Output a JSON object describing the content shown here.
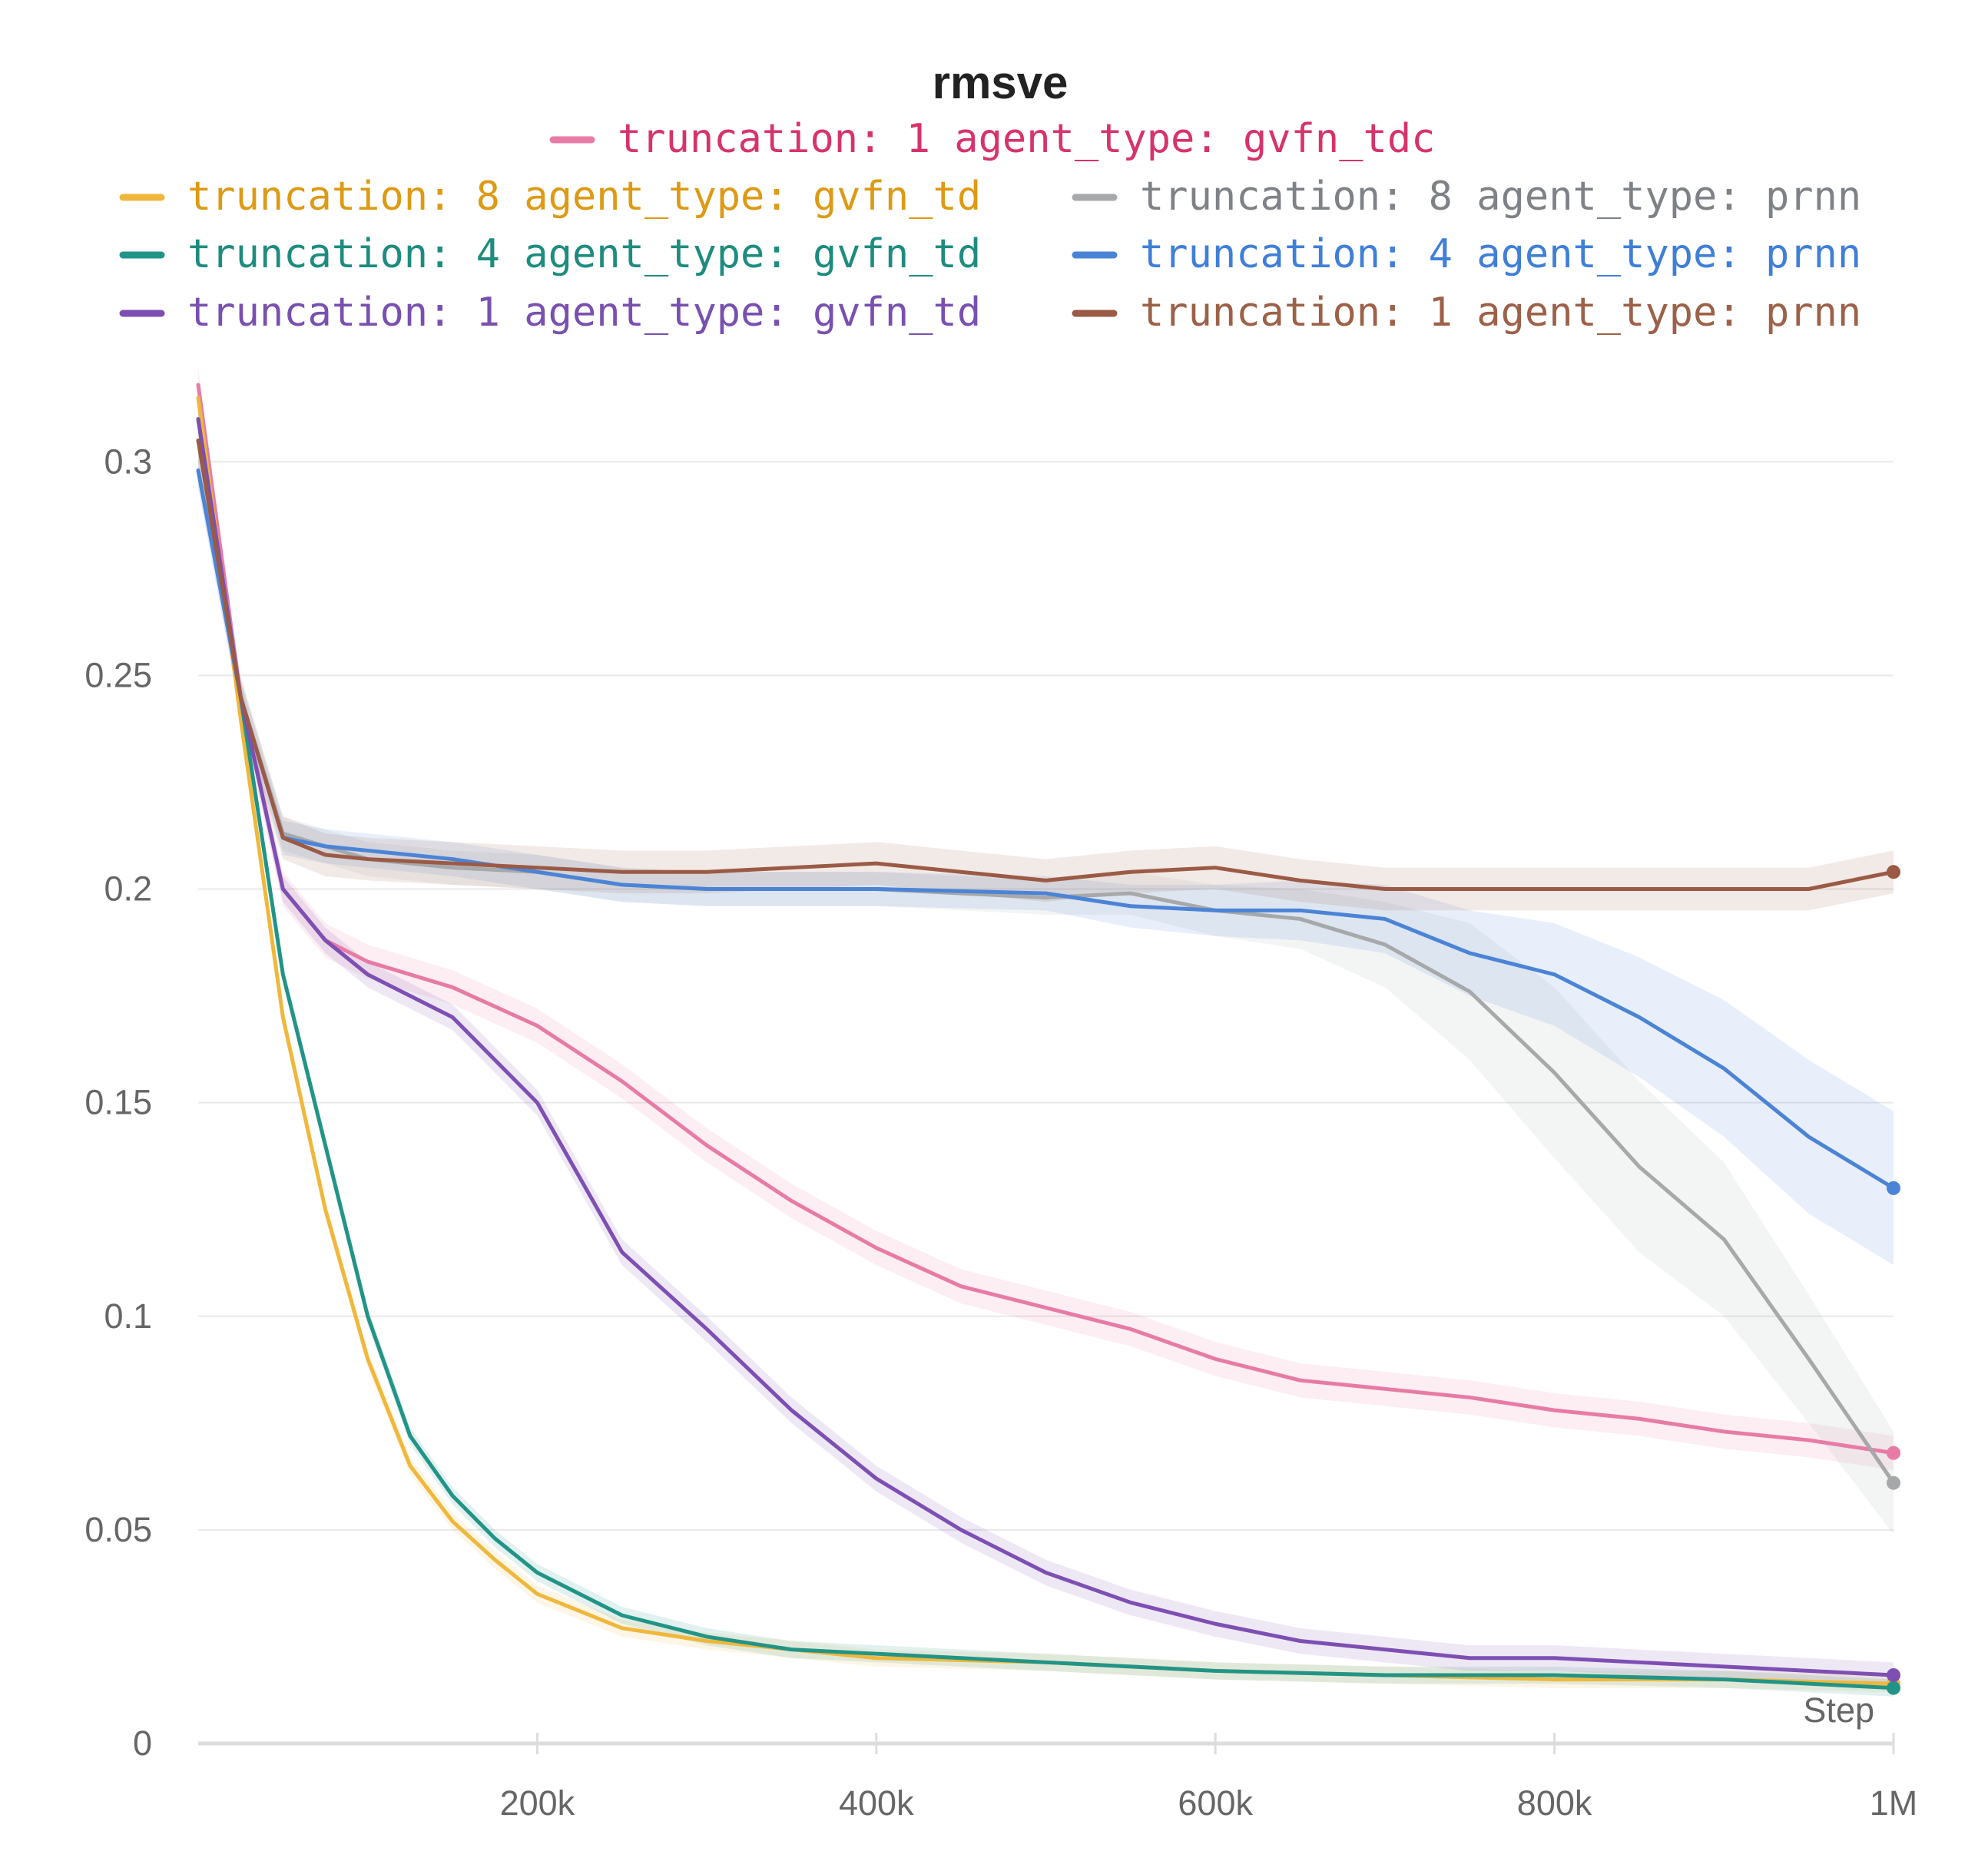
{
  "chart_data": {
    "type": "line",
    "title": "rmsve",
    "xlabel": "Step",
    "ylabel": "",
    "xlim": [
      0,
      1000000
    ],
    "ylim": [
      0,
      0.32
    ],
    "x_ticks": [
      {
        "value": 200000,
        "label": "200k"
      },
      {
        "value": 400000,
        "label": "400k"
      },
      {
        "value": 600000,
        "label": "600k"
      },
      {
        "value": 800000,
        "label": "800k"
      },
      {
        "value": 1000000,
        "label": "1M"
      }
    ],
    "y_ticks": [
      {
        "value": 0,
        "label": "0"
      },
      {
        "value": 0.05,
        "label": "0.05"
      },
      {
        "value": 0.1,
        "label": "0.1"
      },
      {
        "value": 0.15,
        "label": "0.15"
      },
      {
        "value": 0.2,
        "label": "0.2"
      },
      {
        "value": 0.25,
        "label": "0.25"
      },
      {
        "value": 0.3,
        "label": "0.3"
      }
    ],
    "grid": true,
    "legend_position": "top",
    "series": [
      {
        "name": "truncation: 1 agent_type: gvfn_tdc",
        "color": "#e87ba6",
        "label_color": "#d6336c",
        "x": [
          0,
          25000,
          50000,
          75000,
          100000,
          150000,
          200000,
          250000,
          300000,
          350000,
          400000,
          450000,
          500000,
          550000,
          600000,
          650000,
          700000,
          750000,
          800000,
          850000,
          900000,
          950000,
          1000000
        ],
        "y": [
          0.318,
          0.245,
          0.2,
          0.188,
          0.183,
          0.177,
          0.168,
          0.155,
          0.14,
          0.127,
          0.116,
          0.107,
          0.102,
          0.097,
          0.09,
          0.085,
          0.083,
          0.081,
          0.078,
          0.076,
          0.073,
          0.071,
          0.068
        ],
        "band": [
          0.004,
          0.004,
          0.004,
          0.004,
          0.004,
          0.004,
          0.004,
          0.004,
          0.004,
          0.004,
          0.004,
          0.004,
          0.004,
          0.004,
          0.004,
          0.004,
          0.004,
          0.004,
          0.004,
          0.004,
          0.004,
          0.004,
          0.004
        ]
      },
      {
        "name": "truncation: 8 agent_type: gvfn_td",
        "color": "#efb83c",
        "label_color": "#dd9a14",
        "x": [
          0,
          25000,
          50000,
          75000,
          100000,
          125000,
          150000,
          175000,
          200000,
          250000,
          300000,
          350000,
          400000,
          500000,
          600000,
          700000,
          800000,
          900000,
          1000000
        ],
        "y": [
          0.315,
          0.24,
          0.17,
          0.125,
          0.09,
          0.065,
          0.052,
          0.043,
          0.035,
          0.027,
          0.024,
          0.022,
          0.02,
          0.019,
          0.017,
          0.016,
          0.015,
          0.015,
          0.014
        ],
        "band": [
          0.002,
          0.002,
          0.002,
          0.002,
          0.002,
          0.002,
          0.002,
          0.002,
          0.002,
          0.002,
          0.002,
          0.002,
          0.002,
          0.002,
          0.002,
          0.002,
          0.002,
          0.002,
          0.002
        ]
      },
      {
        "name": "truncation: 4 agent_type: gvfn_td",
        "color": "#229487",
        "label_color": "#1d8c7f",
        "x": [
          0,
          25000,
          50000,
          75000,
          100000,
          125000,
          150000,
          175000,
          200000,
          250000,
          300000,
          350000,
          400000,
          500000,
          600000,
          700000,
          800000,
          900000,
          1000000
        ],
        "y": [
          0.31,
          0.245,
          0.18,
          0.14,
          0.1,
          0.072,
          0.058,
          0.048,
          0.04,
          0.03,
          0.025,
          0.022,
          0.021,
          0.019,
          0.017,
          0.016,
          0.016,
          0.015,
          0.013
        ],
        "band": [
          0.002,
          0.002,
          0.002,
          0.002,
          0.002,
          0.002,
          0.002,
          0.002,
          0.002,
          0.002,
          0.002,
          0.002,
          0.002,
          0.002,
          0.002,
          0.002,
          0.002,
          0.002,
          0.002
        ]
      },
      {
        "name": "truncation: 1 agent_type: gvfn_td",
        "color": "#7e4fb3",
        "label_color": "#7950b0",
        "x": [
          0,
          25000,
          50000,
          75000,
          100000,
          150000,
          175000,
          200000,
          250000,
          300000,
          350000,
          400000,
          450000,
          500000,
          550000,
          600000,
          650000,
          700000,
          750000,
          800000,
          850000,
          900000,
          1000000
        ],
        "y": [
          0.31,
          0.245,
          0.2,
          0.188,
          0.18,
          0.17,
          0.16,
          0.15,
          0.115,
          0.097,
          0.078,
          0.062,
          0.05,
          0.04,
          0.033,
          0.028,
          0.024,
          0.022,
          0.02,
          0.02,
          0.019,
          0.018,
          0.016
        ],
        "band": [
          0.003,
          0.003,
          0.003,
          0.003,
          0.003,
          0.003,
          0.003,
          0.003,
          0.003,
          0.003,
          0.003,
          0.003,
          0.003,
          0.003,
          0.003,
          0.003,
          0.003,
          0.003,
          0.003,
          0.003,
          0.003,
          0.003,
          0.003
        ]
      },
      {
        "name": "truncation: 8 agent_type: prnn",
        "color": "#a6a8aa",
        "label_color": "#7e8287",
        "x": [
          0,
          25000,
          50000,
          100000,
          150000,
          200000,
          250000,
          300000,
          400000,
          500000,
          550000,
          600000,
          650000,
          700000,
          750000,
          800000,
          850000,
          900000,
          950000,
          1000000
        ],
        "y": [
          0.298,
          0.245,
          0.213,
          0.207,
          0.205,
          0.204,
          0.201,
          0.2,
          0.2,
          0.198,
          0.199,
          0.195,
          0.193,
          0.187,
          0.176,
          0.157,
          0.135,
          0.118,
          0.09,
          0.061
        ],
        "band": [
          0.004,
          0.004,
          0.004,
          0.004,
          0.004,
          0.004,
          0.004,
          0.004,
          0.004,
          0.004,
          0.005,
          0.006,
          0.007,
          0.01,
          0.016,
          0.02,
          0.02,
          0.018,
          0.015,
          0.012
        ]
      },
      {
        "name": "truncation: 4 agent_type: prnn",
        "color": "#4b84d6",
        "label_color": "#3f7fd8",
        "x": [
          0,
          25000,
          50000,
          75000,
          100000,
          150000,
          200000,
          250000,
          300000,
          400000,
          500000,
          550000,
          600000,
          650000,
          700000,
          750000,
          800000,
          850000,
          900000,
          950000,
          1000000
        ],
        "y": [
          0.298,
          0.245,
          0.212,
          0.21,
          0.209,
          0.207,
          0.204,
          0.201,
          0.2,
          0.2,
          0.199,
          0.196,
          0.195,
          0.195,
          0.193,
          0.185,
          0.18,
          0.17,
          0.158,
          0.142,
          0.13
        ],
        "band": [
          0.004,
          0.004,
          0.004,
          0.004,
          0.004,
          0.004,
          0.004,
          0.004,
          0.004,
          0.004,
          0.004,
          0.005,
          0.006,
          0.007,
          0.008,
          0.01,
          0.012,
          0.014,
          0.016,
          0.018,
          0.018
        ]
      },
      {
        "name": "truncation: 1 agent_type: prnn",
        "color": "#9b5a45",
        "label_color": "#9c6148",
        "x": [
          0,
          25000,
          50000,
          75000,
          100000,
          150000,
          200000,
          250000,
          300000,
          350000,
          400000,
          450000,
          500000,
          550000,
          600000,
          650000,
          700000,
          750000,
          800000,
          850000,
          900000,
          950000,
          1000000
        ],
        "y": [
          0.305,
          0.245,
          0.212,
          0.208,
          0.207,
          0.206,
          0.205,
          0.204,
          0.204,
          0.205,
          0.206,
          0.204,
          0.202,
          0.204,
          0.205,
          0.202,
          0.2,
          0.2,
          0.2,
          0.2,
          0.2,
          0.2,
          0.204
        ],
        "band": [
          0.005,
          0.005,
          0.005,
          0.005,
          0.005,
          0.005,
          0.005,
          0.005,
          0.005,
          0.005,
          0.005,
          0.005,
          0.005,
          0.005,
          0.005,
          0.005,
          0.005,
          0.005,
          0.005,
          0.005,
          0.005,
          0.005,
          0.005
        ]
      }
    ]
  }
}
